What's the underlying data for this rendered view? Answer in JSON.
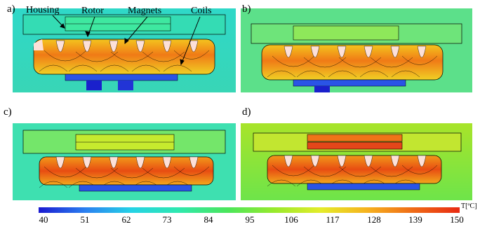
{
  "figure": {
    "panels": [
      {
        "label": "a)"
      },
      {
        "label": "b)"
      },
      {
        "label": "c)"
      },
      {
        "label": "d)"
      }
    ],
    "callouts": {
      "housing": "Housing",
      "rotor": "Rotor",
      "magnets": "Magnets",
      "coils": "Coils"
    },
    "colorbar": {
      "title": "T[ºC]",
      "ticks": [
        "40",
        "51",
        "62",
        "73",
        "84",
        "95",
        "106",
        "117",
        "128",
        "139",
        "150"
      ],
      "range": [
        40,
        150
      ],
      "colors": [
        "#1a1ad0",
        "#2a7ff0",
        "#25d2e6",
        "#2ee8b0",
        "#4be65a",
        "#98ea2c",
        "#e4ec2a",
        "#f6b21e",
        "#ef6a16",
        "#e82a12"
      ]
    }
  }
}
